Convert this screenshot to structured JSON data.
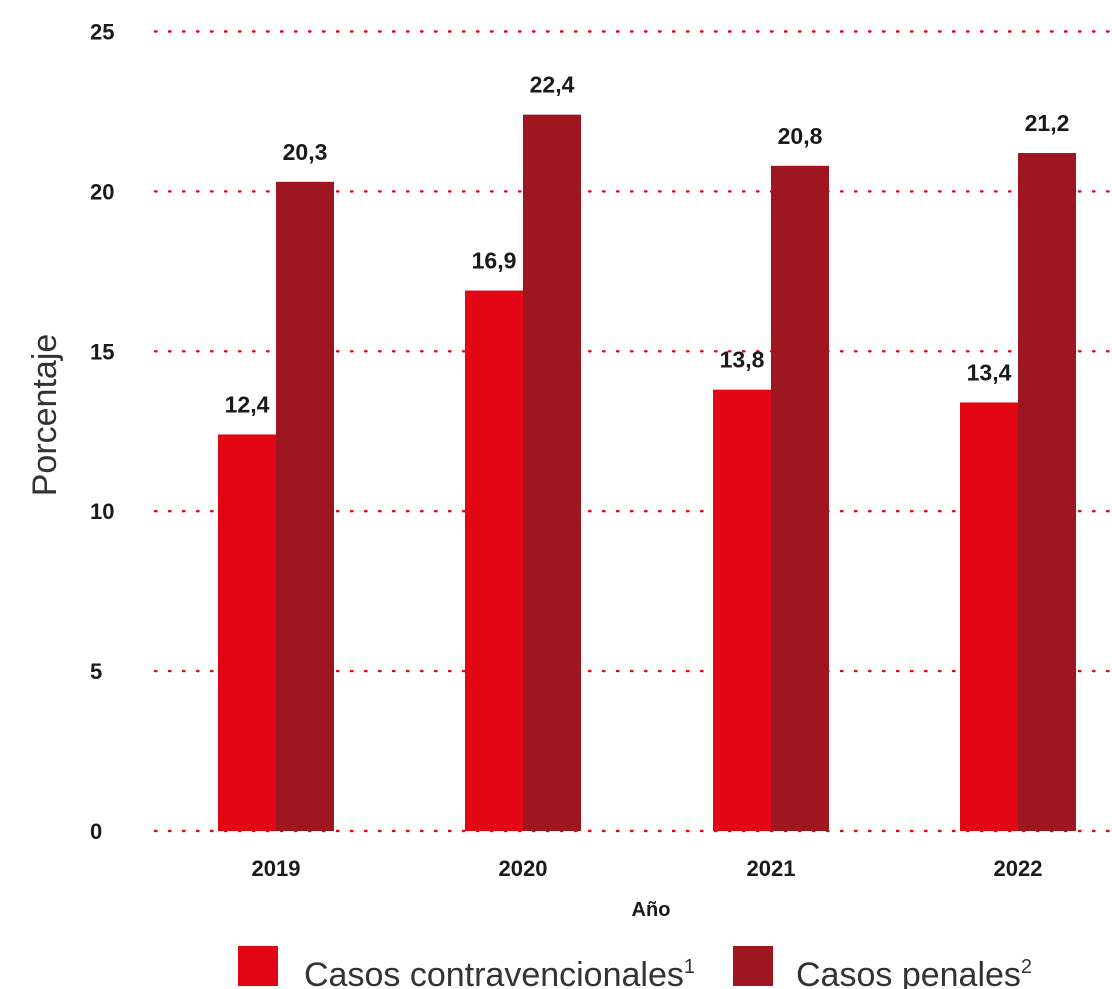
{
  "chart_data": {
    "type": "bar",
    "categories": [
      "2019",
      "2020",
      "2021",
      "2022"
    ],
    "series": [
      {
        "name": "Casos contravencionales",
        "marker": "1",
        "color": "#e30613",
        "values": [
          12.4,
          16.9,
          13.8,
          13.4
        ],
        "labels": [
          "12,4",
          "16,9",
          "13,8",
          "13,4"
        ]
      },
      {
        "name": "Casos penales",
        "marker": "2",
        "color": "#9e1620",
        "values": [
          20.3,
          22.4,
          20.8,
          21.2
        ],
        "labels": [
          "20,3",
          "22,4",
          "20,8",
          "21,2"
        ]
      }
    ],
    "ylabel": "Porcentaje",
    "xlabel": "Año",
    "ylim": [
      0,
      25
    ],
    "yticks": [
      0,
      5,
      10,
      15,
      20,
      25
    ],
    "grid": "dotted",
    "grid_color": "#e30613",
    "legend": "bottom"
  }
}
